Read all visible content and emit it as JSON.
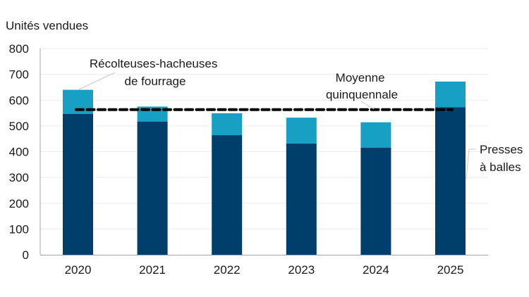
{
  "chart_data": {
    "type": "bar",
    "stacked": true,
    "title": "",
    "ylabel": "Unités vendues",
    "xlabel": "",
    "ylim": [
      0,
      800
    ],
    "yticks": [
      0,
      100,
      200,
      300,
      400,
      500,
      600,
      700,
      800
    ],
    "grid": true,
    "categories": [
      "2020",
      "2021",
      "2022",
      "2023",
      "2024",
      "2025"
    ],
    "series": [
      {
        "name": "Presses à balles",
        "color": "#003f6b",
        "values": [
          547,
          517,
          464,
          432,
          415,
          572
        ]
      },
      {
        "name": "Récolteuses-hacheuses de fourrage",
        "color": "#17a0c4",
        "values": [
          93,
          58,
          85,
          100,
          99,
          100
        ]
      }
    ],
    "totals": [
      640,
      575,
      549,
      532,
      514,
      672
    ],
    "reference_line": {
      "name": "Moyenne quinquennale",
      "value": 563,
      "style": "dashed",
      "color": "#000000"
    },
    "annotations": [
      {
        "text_lines": [
          "Récolteuses-hacheuses",
          "de fourrage"
        ],
        "target": "2020 light segment"
      },
      {
        "text_lines": [
          "Moyenne",
          "quinquennale"
        ],
        "target": "dashed average line"
      },
      {
        "text_lines": [
          "Presses",
          "à balles"
        ],
        "target": "2025 dark segment"
      }
    ],
    "legend": "inline annotations"
  },
  "labels": {
    "ylabel": "Unités vendues",
    "annot_forage_1": "Récolteuses-hacheuses",
    "annot_forage_2": "de fourrage",
    "annot_avg_1": "Moyenne",
    "annot_avg_2": "quinquennale",
    "annot_baler_1": "Presses",
    "annot_baler_2": "à balles"
  }
}
